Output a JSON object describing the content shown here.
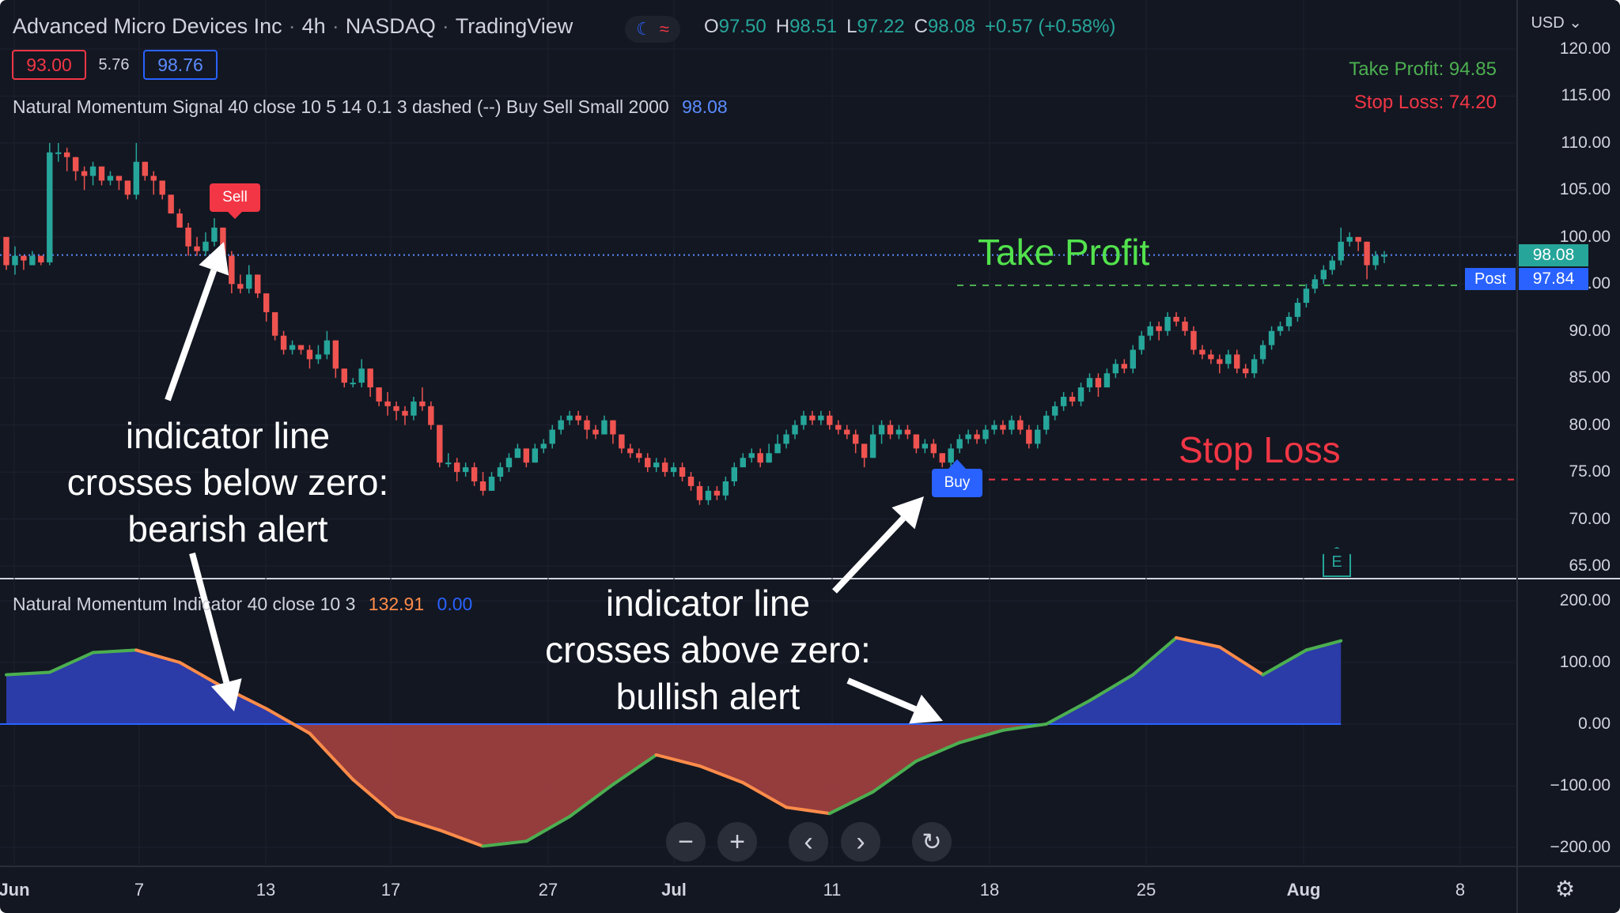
{
  "header": {
    "symbol": "Advanced Micro Devices Inc",
    "interval": "4h",
    "exchange": "NASDAQ",
    "platform": "TradingView",
    "ohlc": {
      "o": "97.50",
      "h": "98.51",
      "l": "97.22",
      "c": "98.08",
      "chg": "+0.57 (+0.58%)"
    },
    "bid": "93.00",
    "spread": "5.76",
    "ask": "98.76",
    "currency": "USD"
  },
  "signal_legend": {
    "name": "Natural Momentum Signal 40 close 10 5 14 0.1 3 dashed (--) Buy Sell Small 2000",
    "value": "98.08"
  },
  "indicator_legend": {
    "name": "Natural Momentum Indicator 40 close 10 3",
    "value1": "132.91",
    "value2": "0.00"
  },
  "top_right": {
    "take_profit": "Take Profit: 94.85",
    "stop_loss": "Stop Loss: 74.20"
  },
  "overlay_labels": {
    "take_profit": "Take Profit",
    "stop_loss": "Stop Loss",
    "bearish": [
      "indicator line",
      "crosses below zero:",
      "bearish alert"
    ],
    "bullish": [
      "indicator line",
      "crosses above zero:",
      "bullish alert"
    ]
  },
  "signals": {
    "sell": "Sell",
    "buy": "Buy"
  },
  "price_tags": {
    "last": "98.08",
    "post_label": "Post",
    "post_value": "97.84"
  },
  "chart_data": {
    "type": "candlestick",
    "price_axis": {
      "ticks": [
        "120.00",
        "115.00",
        "110.00",
        "105.00",
        "100.00",
        "95.00",
        "90.00",
        "85.00",
        "80.00",
        "75.00",
        "70.00",
        "65.00"
      ],
      "ylim": [
        65,
        120
      ]
    },
    "indicator_axis": {
      "ticks": [
        "200.00",
        "100.00",
        "0.00",
        "−100.00",
        "−200.00"
      ],
      "ylim": [
        -200,
        200
      ]
    },
    "x_ticks": [
      "Jun",
      "7",
      "13",
      "17",
      "27",
      "Jul",
      "11",
      "18",
      "25",
      "Aug",
      "8"
    ],
    "levels": {
      "last": 98.08,
      "take_profit": 94.85,
      "stop_loss": 74.2
    },
    "candles": [
      [
        100,
        97,
        100,
        96.5
      ],
      [
        97,
        98,
        99,
        96
      ],
      [
        98,
        97.5,
        98,
        96.5
      ],
      [
        97,
        98,
        98.5,
        97
      ],
      [
        98,
        97.3,
        98,
        97
      ],
      [
        97.3,
        109,
        110,
        97
      ],
      [
        109,
        109,
        110,
        108
      ],
      [
        109,
        108.5,
        109.5,
        107
      ],
      [
        108.5,
        107,
        108.5,
        106
      ],
      [
        107,
        106.5,
        107.5,
        105
      ],
      [
        106.5,
        107.5,
        108,
        105.5
      ],
      [
        107.5,
        106,
        107.5,
        105.5
      ],
      [
        106,
        106.5,
        107,
        105.5
      ],
      [
        106.5,
        106,
        106.5,
        105
      ],
      [
        106,
        104.5,
        106,
        104
      ],
      [
        104.5,
        108,
        110,
        104
      ],
      [
        108,
        106.5,
        108,
        106
      ],
      [
        106.5,
        106,
        107,
        104.5
      ],
      [
        106,
        104.5,
        106,
        104
      ],
      [
        104.5,
        102.5,
        104.5,
        102.5
      ],
      [
        102.5,
        101,
        103,
        101
      ],
      [
        101,
        99,
        101.5,
        98
      ],
      [
        99,
        98.5,
        100,
        98
      ],
      [
        98.5,
        99.5,
        100.5,
        98
      ],
      [
        99.5,
        101,
        102,
        99
      ],
      [
        101,
        98,
        101,
        97
      ],
      [
        98,
        95,
        98.5,
        94
      ],
      [
        95,
        94.5,
        96,
        94
      ],
      [
        94.5,
        96,
        97,
        94
      ],
      [
        96,
        94,
        96,
        93.5
      ],
      [
        94,
        92,
        94,
        91
      ],
      [
        92,
        89.5,
        92,
        89
      ],
      [
        89.5,
        88,
        90,
        87.5
      ],
      [
        88,
        88.5,
        89,
        87.5
      ],
      [
        88.5,
        88,
        88.5,
        87.5
      ],
      [
        88,
        87,
        88.5,
        86
      ],
      [
        87,
        87.5,
        88.5,
        86.5
      ],
      [
        87.5,
        89,
        90,
        87
      ],
      [
        89,
        86,
        89,
        85
      ],
      [
        86,
        84.5,
        86,
        84
      ],
      [
        84.5,
        84.5,
        85,
        84
      ],
      [
        84.5,
        86,
        87,
        84
      ],
      [
        86,
        84,
        86,
        83
      ],
      [
        84,
        82.5,
        84,
        82
      ],
      [
        82.5,
        82,
        83.5,
        81
      ],
      [
        82,
        81.5,
        82.5,
        80.5
      ],
      [
        81.5,
        81,
        82,
        80
      ],
      [
        81,
        82.5,
        83,
        80.5
      ],
      [
        82.5,
        82,
        84,
        81.5
      ],
      [
        82,
        80,
        82.5,
        79.5
      ],
      [
        80,
        76,
        80,
        75.5
      ],
      [
        76,
        76,
        77,
        75.5
      ],
      [
        76,
        75,
        76.5,
        74
      ],
      [
        75,
        75.5,
        76,
        74.5
      ],
      [
        75.5,
        74,
        76,
        73.5
      ],
      [
        74,
        73,
        75,
        72.5
      ],
      [
        73,
        74.5,
        75,
        73
      ],
      [
        74.5,
        75.5,
        76,
        74
      ],
      [
        75.5,
        76.5,
        77,
        75
      ],
      [
        76.5,
        77.5,
        78,
        76.5
      ],
      [
        77.5,
        76,
        77.5,
        75.5
      ],
      [
        76,
        77.5,
        78,
        76
      ],
      [
        77.5,
        78,
        78.5,
        77
      ],
      [
        78,
        79.5,
        80,
        77.5
      ],
      [
        79.5,
        80.5,
        81,
        79
      ],
      [
        80.5,
        81,
        81.5,
        80
      ],
      [
        81,
        80.5,
        81.5,
        80
      ],
      [
        80.5,
        79.5,
        81,
        78.5
      ],
      [
        79.5,
        79,
        80,
        78.5
      ],
      [
        79,
        80.5,
        81,
        79
      ],
      [
        80.5,
        79,
        80.5,
        78
      ],
      [
        79,
        77.5,
        79,
        77
      ],
      [
        77.5,
        77,
        78,
        76.5
      ],
      [
        77,
        76.5,
        77.5,
        76
      ],
      [
        76.5,
        75.5,
        77,
        75
      ],
      [
        75.5,
        76,
        76.5,
        75
      ],
      [
        76,
        75,
        76.5,
        74.5
      ],
      [
        75,
        75.5,
        76,
        74.5
      ],
      [
        75.5,
        74.5,
        76,
        74
      ],
      [
        74.5,
        73.5,
        75,
        73
      ],
      [
        73.5,
        72,
        74,
        71.5
      ],
      [
        72,
        73,
        73.5,
        71.5
      ],
      [
        73,
        72.5,
        73.5,
        72
      ],
      [
        72.5,
        74,
        74.5,
        72
      ],
      [
        74,
        75.5,
        76,
        73.5
      ],
      [
        75.5,
        76.5,
        77,
        75.5
      ],
      [
        76.5,
        77,
        77.5,
        76
      ],
      [
        77,
        76,
        77.5,
        75.5
      ],
      [
        76,
        77,
        78,
        76
      ],
      [
        77,
        78,
        79,
        77
      ],
      [
        78,
        79,
        79.5,
        77.5
      ],
      [
        79,
        80,
        80.5,
        78.5
      ],
      [
        80,
        81,
        81.5,
        79.5
      ],
      [
        81,
        80.5,
        81.5,
        80
      ],
      [
        80.5,
        81,
        81.5,
        80
      ],
      [
        81,
        80,
        81.5,
        79.5
      ],
      [
        80,
        79.5,
        80.5,
        79
      ],
      [
        79.5,
        79,
        80,
        78.5
      ],
      [
        79,
        78,
        79.5,
        77
      ],
      [
        78,
        76.5,
        78,
        75.5
      ],
      [
        76.5,
        79,
        80,
        76.5
      ],
      [
        79,
        80,
        80.5,
        78
      ],
      [
        80,
        79,
        80.5,
        78.5
      ],
      [
        79,
        79.5,
        80,
        78.5
      ],
      [
        79.5,
        79,
        80,
        78.5
      ],
      [
        79,
        77.5,
        79,
        77
      ],
      [
        77.5,
        78,
        78.5,
        77
      ],
      [
        78,
        77,
        78.5,
        76.5
      ],
      [
        77,
        76,
        77,
        75.5
      ],
      [
        76,
        77.5,
        78,
        75.5
      ],
      [
        77.5,
        78.5,
        79,
        77
      ],
      [
        78.5,
        79,
        79.5,
        78
      ],
      [
        79,
        78.5,
        79.5,
        78
      ],
      [
        78.5,
        79.5,
        80,
        78
      ],
      [
        79.5,
        80,
        80.5,
        79
      ],
      [
        80,
        79.5,
        80.5,
        79
      ],
      [
        79.5,
        80.5,
        81,
        79
      ],
      [
        80.5,
        79.5,
        81,
        79
      ],
      [
        79.5,
        78,
        80,
        77.5
      ],
      [
        78,
        79.5,
        80,
        77.5
      ],
      [
        79.5,
        81,
        81.5,
        79
      ],
      [
        81,
        82,
        82.5,
        80.5
      ],
      [
        82,
        83,
        83.5,
        81.5
      ],
      [
        83,
        82.5,
        83.5,
        82
      ],
      [
        82.5,
        84,
        84.5,
        82
      ],
      [
        84,
        85,
        85.5,
        83.5
      ],
      [
        85,
        84,
        85.5,
        83
      ],
      [
        84,
        85.5,
        86,
        84
      ],
      [
        85.5,
        86.5,
        87,
        85
      ],
      [
        86.5,
        86,
        87,
        85.5
      ],
      [
        86,
        88,
        88.5,
        85.5
      ],
      [
        88,
        89.5,
        90,
        87.5
      ],
      [
        89.5,
        90.5,
        91,
        89
      ],
      [
        90.5,
        90,
        91,
        89
      ],
      [
        90,
        91.5,
        92,
        89.5
      ],
      [
        91.5,
        91,
        92,
        90.5
      ],
      [
        91,
        90,
        91.5,
        89.5
      ],
      [
        90,
        88,
        90.5,
        87.5
      ],
      [
        88,
        87.5,
        88.5,
        87
      ],
      [
        87.5,
        87,
        88,
        86.5
      ],
      [
        87,
        86.5,
        87.5,
        85.5
      ],
      [
        86.5,
        87.5,
        88,
        86
      ],
      [
        87.5,
        86,
        88,
        85.5
      ],
      [
        86,
        85.5,
        86.5,
        85
      ],
      [
        85.5,
        87,
        87.5,
        85
      ],
      [
        87,
        88.5,
        89,
        86.5
      ],
      [
        88.5,
        90,
        90.5,
        88
      ],
      [
        90,
        90.5,
        91,
        89.5
      ],
      [
        90.5,
        91.5,
        92,
        90
      ],
      [
        91.5,
        93,
        93.5,
        91
      ],
      [
        93,
        94.5,
        95,
        92.5
      ],
      [
        94.5,
        95.5,
        96,
        94
      ],
      [
        95.5,
        96.5,
        97,
        95
      ],
      [
        96.5,
        97.5,
        98,
        96
      ],
      [
        97.5,
        99.5,
        101,
        97
      ],
      [
        99.5,
        100,
        100.5,
        99
      ],
      [
        100,
        99.5,
        100,
        98.5
      ],
      [
        99.5,
        97,
        99.5,
        95.5
      ],
      [
        97,
        98,
        98.5,
        96.5
      ],
      [
        98,
        98.08,
        98.51,
        97.22
      ]
    ],
    "indicator": {
      "x_index": [
        0,
        5,
        10,
        15,
        20,
        25,
        30,
        35,
        40,
        45,
        50,
        55,
        60,
        65,
        70,
        75,
        80,
        85,
        90,
        95,
        100,
        105,
        110,
        115,
        120,
        125,
        130,
        135,
        140,
        145,
        150,
        154
      ],
      "values": [
        80,
        84,
        116,
        120,
        100,
        60,
        25,
        -15,
        -90,
        -150,
        -172,
        -198,
        -190,
        -150,
        -98,
        -50,
        -68,
        -95,
        -135,
        -145,
        -110,
        -60,
        -30,
        -10,
        0,
        38,
        80,
        140,
        125,
        80,
        120,
        135
      ]
    }
  },
  "controls": {
    "zoom_out": "−",
    "zoom_in": "+",
    "scroll_left": "‹",
    "scroll_right": "›",
    "reset": "↻"
  }
}
